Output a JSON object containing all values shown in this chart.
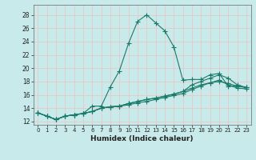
{
  "xlabel": "Humidex (Indice chaleur)",
  "ylabel": "",
  "xlim": [
    -0.5,
    23.5
  ],
  "ylim": [
    11.5,
    29.5
  ],
  "yticks": [
    12,
    14,
    16,
    18,
    20,
    22,
    24,
    26,
    28
  ],
  "xticks": [
    0,
    1,
    2,
    3,
    4,
    5,
    6,
    7,
    8,
    9,
    10,
    11,
    12,
    13,
    14,
    15,
    16,
    17,
    18,
    19,
    20,
    21,
    22,
    23
  ],
  "bg_color": "#c8eaea",
  "grid_color": "#e8c8c8",
  "line_color": "#1a7a6a",
  "curves": [
    [
      13.3,
      12.8,
      12.3,
      12.8,
      13.0,
      13.2,
      14.3,
      14.3,
      17.2,
      19.6,
      23.7,
      27.0,
      28.0,
      26.8,
      25.6,
      23.2,
      18.2,
      18.3,
      18.3,
      19.0,
      19.2,
      17.3,
      17.3,
      17.1
    ],
    [
      13.3,
      12.8,
      12.3,
      12.8,
      13.0,
      13.2,
      13.5,
      14.0,
      14.2,
      14.3,
      14.7,
      15.0,
      15.3,
      15.5,
      15.8,
      16.1,
      16.5,
      17.0,
      17.5,
      17.8,
      18.0,
      17.7,
      17.3,
      17.1
    ],
    [
      13.3,
      12.8,
      12.3,
      12.8,
      13.0,
      13.2,
      13.5,
      14.0,
      14.2,
      14.3,
      14.7,
      15.0,
      15.3,
      15.5,
      15.8,
      16.1,
      16.5,
      17.5,
      18.0,
      18.5,
      19.0,
      18.5,
      17.5,
      17.1
    ],
    [
      13.3,
      12.8,
      12.3,
      12.8,
      13.0,
      13.2,
      13.5,
      14.0,
      14.2,
      14.3,
      14.5,
      14.8,
      15.0,
      15.3,
      15.6,
      15.9,
      16.2,
      16.8,
      17.3,
      17.8,
      18.2,
      17.5,
      17.0,
      16.9
    ]
  ]
}
